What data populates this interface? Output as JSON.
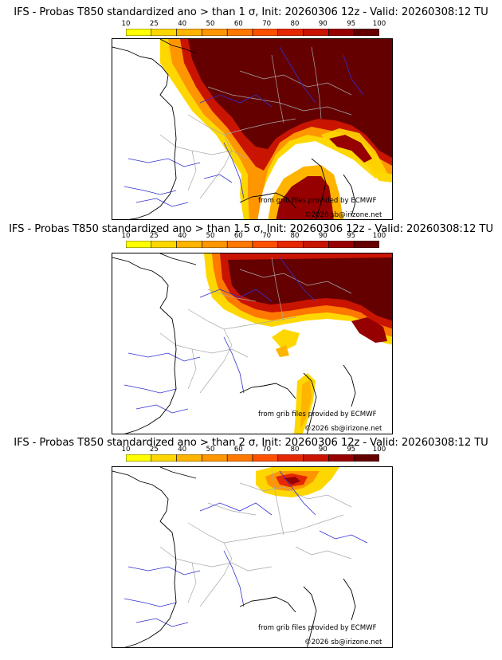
{
  "panels": [
    {
      "title": "IFS - Probas T850  standardized ano > than 1 σ, Init: 20260306 12z - Valid: 20260308:12 TU",
      "credit_source": "from grib files provided by ECMWF",
      "credit_copyright": "©2026 sb@irizone.net",
      "exceedance_probability": "high over north-east and south-east"
    },
    {
      "title": "IFS - Probas T850  standardized ano > than 1.5 σ, Init: 20260306 12z - Valid: 20260308:12 TU",
      "credit_source": "from grib files provided by ECMWF",
      "credit_copyright": "©2026 sb@irizone.net",
      "exceedance_probability": "high over north-east"
    },
    {
      "title": "IFS - Probas T850  standardized ano > than 2 σ, Init: 20260306 12z - Valid: 20260308:12 TU",
      "credit_source": "from grib files provided by ECMWF",
      "credit_copyright": "©2026 sb@irizone.net",
      "exceedance_probability": "limited to far north-east"
    }
  ],
  "colorbar": {
    "ticks": [
      "10",
      "25",
      "40",
      "50",
      "60",
      "70",
      "80",
      "90",
      "95",
      "100"
    ],
    "colors": [
      "#ffff00",
      "#ffd700",
      "#ffb400",
      "#ff9600",
      "#ff7800",
      "#ff5000",
      "#e62800",
      "#c81400",
      "#960000",
      "#640000"
    ]
  },
  "map_colors": {
    "coast": "#000000",
    "rivers": "#3030d0",
    "borders": "#a8a8a8"
  }
}
